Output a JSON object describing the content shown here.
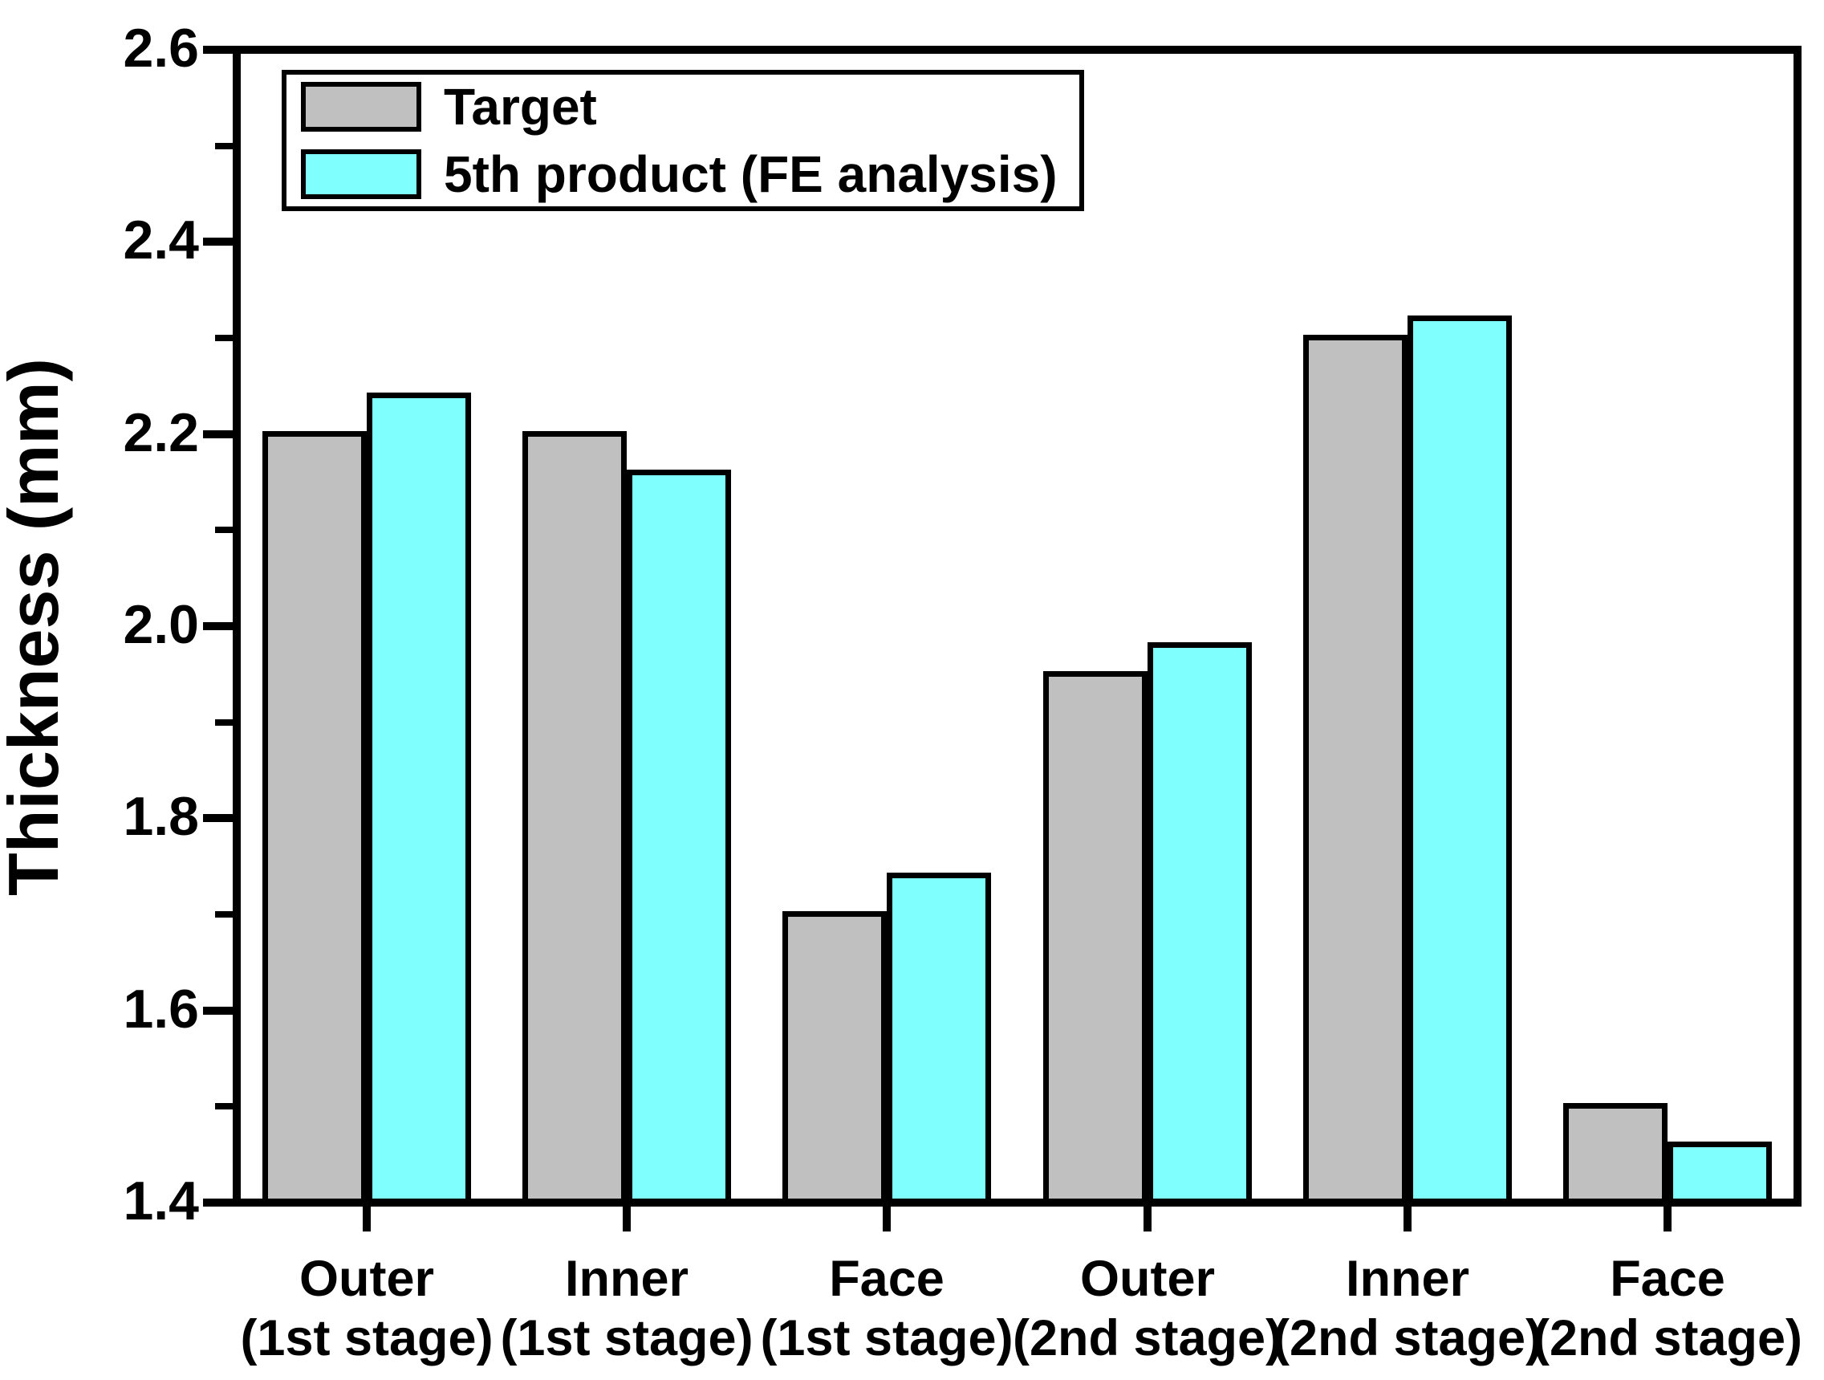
{
  "figure": {
    "background": "#ffffff",
    "axis_color": "#000000",
    "text_color": "#000000"
  },
  "chart_data": {
    "type": "bar",
    "title": "",
    "xlabel": "",
    "ylabel": "Thickness (mm)",
    "ylim": [
      1.4,
      2.6
    ],
    "y_major_ticks": [
      2.6,
      2.4,
      2.2,
      2.0,
      1.8,
      1.6,
      1.4
    ],
    "y_minor_ticks": [
      2.5,
      2.3,
      2.1,
      1.9,
      1.7,
      1.5
    ],
    "y_tick_decimals": 1,
    "grid": false,
    "legend_position": "top-left",
    "categories": [
      [
        "Outer",
        "(1st stage)"
      ],
      [
        "Inner",
        "(1st stage)"
      ],
      [
        "Face",
        "(1st stage)"
      ],
      [
        "Outer",
        "(2nd stage)"
      ],
      [
        "Inner",
        "(2nd stage)"
      ],
      [
        "Face",
        "(2nd stage)"
      ]
    ],
    "series": [
      {
        "name": "Target",
        "color": "#C0C0C0",
        "edge_color": "#000000",
        "values": [
          2.2,
          2.2,
          1.7,
          1.95,
          2.3,
          1.5
        ]
      },
      {
        "name": "5th product (FE analysis)",
        "color": "#80FFFF",
        "edge_color": "#000000",
        "values": [
          2.24,
          2.16,
          1.74,
          1.98,
          2.32,
          1.46
        ]
      }
    ]
  }
}
